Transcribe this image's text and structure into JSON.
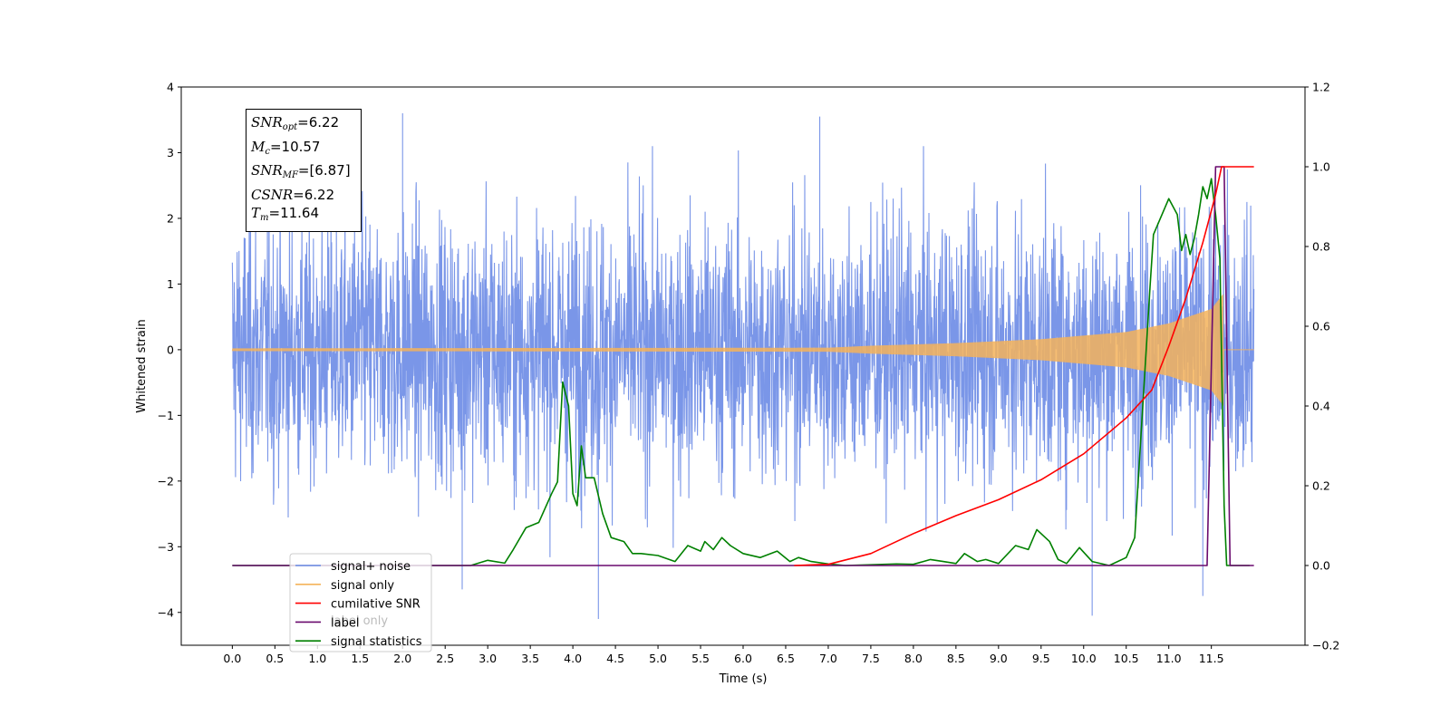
{
  "chart_data": {
    "type": "line",
    "xlabel": "Time (s)",
    "ylabel": "Whitened strain",
    "xlim": [
      -0.6,
      12.6
    ],
    "ylim": [
      -4.5,
      4.0
    ],
    "y2lim": [
      -0.2,
      1.2
    ],
    "xticks": [
      "0.0",
      "0.5",
      "1.0",
      "1.5",
      "2.0",
      "2.5",
      "3.0",
      "3.5",
      "4.0",
      "4.5",
      "5.0",
      "5.5",
      "6.0",
      "6.5",
      "7.0",
      "7.5",
      "8.0",
      "8.5",
      "9.0",
      "9.5",
      "10.0",
      "10.5",
      "11.0",
      "11.5"
    ],
    "yticks": [
      "4",
      "3",
      "2",
      "1",
      "0",
      "−1",
      "−2",
      "−3",
      "−4"
    ],
    "y2ticks": [
      "1.2",
      "1.0",
      "0.8",
      "0.6",
      "0.4",
      "0.2",
      "0.0",
      "−0.2"
    ],
    "grid": false,
    "legend_position": "lower-left",
    "legend": [
      "signal+ noise",
      "signal only",
      "cumilative SNR",
      "label",
      "signal statistics"
    ],
    "legend_ghost_text": "label only",
    "info_box": {
      "snr_opt": "=6.22",
      "mc": "=10.57",
      "snr_mf": "=[6.87]",
      "csnr": "=6.22",
      "tm": "=11.64"
    },
    "series": [
      {
        "name": "signal+ noise",
        "axis": "left",
        "color": "#6b8be6",
        "kind": "noise",
        "x_range": [
          0.0,
          12.0
        ],
        "amplitude_sigma": 1.0,
        "extremes": [
          [
            2.0,
            3.6
          ],
          [
            6.9,
            3.55
          ],
          [
            4.3,
            -4.1
          ],
          [
            10.1,
            -4.05
          ],
          [
            2.7,
            -3.65
          ],
          [
            11.4,
            -3.75
          ]
        ]
      },
      {
        "name": "signal only",
        "axis": "left",
        "color": "#f4b35a",
        "kind": "chirp",
        "merger_time": 11.64,
        "envelope": {
          "x": [
            0.0,
            7.0,
            7.5,
            8.5,
            9.5,
            10.5,
            11.0,
            11.5,
            11.64
          ],
          "y": [
            0.02,
            0.03,
            0.06,
            0.1,
            0.16,
            0.27,
            0.4,
            0.62,
            0.85
          ]
        }
      },
      {
        "name": "cumilative SNR",
        "axis": "right",
        "color": "#ff0000",
        "x": [
          6.6,
          7.0,
          7.5,
          8.0,
          8.5,
          9.0,
          9.5,
          10.0,
          10.5,
          10.8,
          11.0,
          11.2,
          11.4,
          11.55,
          11.62,
          11.7,
          12.0
        ],
        "y": [
          0.0,
          0.003,
          0.03,
          0.08,
          0.125,
          0.165,
          0.215,
          0.28,
          0.37,
          0.44,
          0.55,
          0.67,
          0.81,
          0.93,
          1.0,
          1.0,
          1.0
        ]
      },
      {
        "name": "label",
        "axis": "right",
        "color": "#6a0a6e",
        "x": [
          0.0,
          11.45,
          11.55,
          11.65,
          11.72,
          12.0
        ],
        "y": [
          0.0,
          0.0,
          1.0,
          1.0,
          0.0,
          0.0
        ]
      },
      {
        "name": "signal statistics",
        "axis": "right",
        "color": "#008000",
        "x": [
          0.0,
          2.8,
          3.0,
          3.2,
          3.3,
          3.45,
          3.6,
          3.75,
          3.82,
          3.88,
          3.95,
          4.0,
          4.05,
          4.1,
          4.15,
          4.25,
          4.35,
          4.45,
          4.6,
          4.7,
          4.8,
          5.0,
          5.2,
          5.35,
          5.5,
          5.55,
          5.65,
          5.75,
          5.85,
          6.0,
          6.2,
          6.4,
          6.55,
          6.65,
          6.8,
          7.0,
          7.2,
          7.5,
          7.8,
          8.0,
          8.2,
          8.35,
          8.5,
          8.6,
          8.75,
          8.85,
          9.0,
          9.2,
          9.35,
          9.45,
          9.6,
          9.7,
          9.8,
          9.95,
          10.1,
          10.3,
          10.5,
          10.6,
          10.7,
          10.78,
          10.82,
          10.9,
          11.0,
          11.1,
          11.15,
          11.2,
          11.25,
          11.3,
          11.35,
          11.4,
          11.45,
          11.5,
          11.55,
          11.6,
          11.65,
          11.68,
          11.72,
          11.8,
          11.95
        ],
        "y": [
          0.0,
          0.0,
          0.013,
          0.006,
          0.04,
          0.095,
          0.108,
          0.18,
          0.21,
          0.46,
          0.4,
          0.18,
          0.15,
          0.3,
          0.22,
          0.22,
          0.13,
          0.07,
          0.06,
          0.03,
          0.03,
          0.025,
          0.01,
          0.05,
          0.036,
          0.06,
          0.04,
          0.07,
          0.05,
          0.03,
          0.02,
          0.036,
          0.01,
          0.02,
          0.01,
          0.004,
          0.0,
          0.002,
          0.004,
          0.003,
          0.015,
          0.01,
          0.005,
          0.03,
          0.01,
          0.015,
          0.005,
          0.05,
          0.04,
          0.09,
          0.06,
          0.015,
          0.005,
          0.045,
          0.01,
          0.0,
          0.02,
          0.07,
          0.42,
          0.7,
          0.83,
          0.87,
          0.92,
          0.88,
          0.79,
          0.83,
          0.78,
          0.82,
          0.88,
          0.95,
          0.92,
          0.97,
          0.88,
          0.77,
          0.15,
          0.0,
          0.0,
          0.0,
          0.0
        ]
      }
    ]
  }
}
